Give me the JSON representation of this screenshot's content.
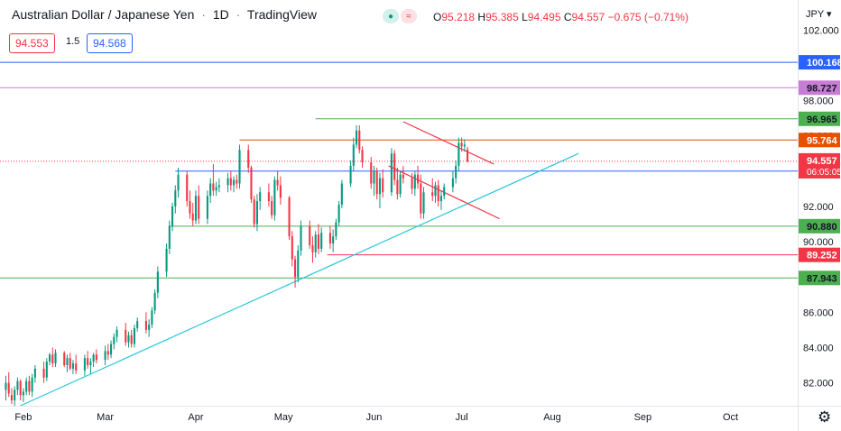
{
  "header": {
    "symbol_title": "Australian Dollar / Japanese Yen",
    "interval": "1D",
    "brand": "TradingView",
    "open_label": "O",
    "open": "95.218",
    "high_label": "H",
    "high": "95.385",
    "low_label": "L",
    "low": "94.495",
    "close_label": "C",
    "close": "94.557",
    "change": "−0.675 (−0.71%)",
    "sell_price": "94.553",
    "spread": "1.5",
    "buy_price": "94.568",
    "currency": "JPY"
  },
  "colors": {
    "up": "#089981",
    "down": "#f23645",
    "trendline": "#26c6da",
    "blue_line": "#2962ff",
    "pink_line": "#c77dd4",
    "green_line": "#4caf50",
    "orange_line": "#e65100",
    "red_line": "#f23645",
    "wedge": "#f23645"
  },
  "icons": [
    "waves-icon",
    "settings-gear-icon"
  ],
  "chart_data": {
    "type": "candlestick",
    "title": "Australian Dollar / Japanese Yen · 1D",
    "ylim": [
      80.7,
      103.7
    ],
    "xlim_days": [
      -8,
      265
    ],
    "y_axis_ticks": [
      "82.000",
      "84.000",
      "86.000",
      "88.000",
      "90.000",
      "92.000",
      "94.000",
      "96.000",
      "98.000",
      "100.000",
      "102.000"
    ],
    "y_tick_values": [
      82,
      84,
      86,
      88,
      90,
      92,
      94,
      96,
      98,
      100,
      102
    ],
    "x_axis_labels": [
      "Feb",
      "Mar",
      "Apr",
      "May",
      "Jun",
      "Jul",
      "Aug",
      "Sep",
      "Oct"
    ],
    "x_axis_days": [
      0,
      28,
      59,
      89,
      120,
      150,
      181,
      212,
      242
    ],
    "levels": [
      {
        "value": 100.168,
        "label": "100.168",
        "color": "#2962ff",
        "text_color": "#ffffff",
        "start_day": -8
      },
      {
        "value": 98.727,
        "label": "98.727",
        "color": "#c77dd4",
        "text_color": "#131722",
        "start_day": -8
      },
      {
        "value": 96.965,
        "label": "96.965",
        "color": "#4caf50",
        "text_color": "#131722",
        "start_day": 100
      },
      {
        "value": 95.764,
        "label": "95.764",
        "color": "#e65100",
        "text_color": "#ffffff",
        "start_day": 74
      },
      {
        "value": 94.002,
        "label": "94.002",
        "color": "#2962ff",
        "text_color": "#ffffff",
        "start_day": 52
      },
      {
        "value": 90.88,
        "label": "90.880",
        "color": "#4caf50",
        "text_color": "#131722",
        "start_day": 50
      },
      {
        "value": 89.252,
        "label": "89.252",
        "color": "#f23645",
        "text_color": "#ffffff",
        "start_day": 104
      },
      {
        "value": 87.943,
        "label": "87.943",
        "color": "#4caf50",
        "text_color": "#131722",
        "start_day": -8
      }
    ],
    "last_price": {
      "value": 94.557,
      "label": "94.557",
      "countdown": "06:05:05"
    },
    "trendline": {
      "from": [
        -1,
        80.7
      ],
      "to": [
        190,
        95.0
      ]
    },
    "wedge_upper": {
      "from": [
        130,
        96.8
      ],
      "to": [
        161,
        94.4
      ]
    },
    "wedge_lower": {
      "from": [
        125,
        94.3
      ],
      "to": [
        163,
        91.3
      ]
    },
    "candles": [
      [
        -6,
        81.6,
        82.4,
        81.0,
        82.0
      ],
      [
        -5,
        82.0,
        82.6,
        81.2,
        81.4
      ],
      [
        -4,
        81.3,
        81.7,
        80.8,
        81.0
      ],
      [
        -3,
        81.0,
        81.8,
        80.7,
        81.6
      ],
      [
        -2,
        81.6,
        82.3,
        81.3,
        82.1
      ],
      [
        -1,
        82.1,
        82.2,
        81.0,
        81.3
      ],
      [
        0,
        81.3,
        81.7,
        80.9,
        81.5
      ],
      [
        1,
        81.5,
        82.3,
        81.3,
        82.1
      ],
      [
        2,
        82.1,
        82.4,
        81.3,
        81.5
      ],
      [
        3,
        81.5,
        82.5,
        81.2,
        82.3
      ],
      [
        4,
        82.3,
        83.0,
        82.0,
        82.8
      ],
      [
        7,
        82.8,
        83.2,
        82.0,
        82.3
      ],
      [
        8,
        82.3,
        83.4,
        82.1,
        83.2
      ],
      [
        9,
        83.2,
        83.7,
        83.0,
        83.6
      ],
      [
        10,
        83.6,
        84.0,
        82.9,
        83.1
      ],
      [
        11,
        83.1,
        83.9,
        82.9,
        83.7
      ],
      [
        14,
        83.7,
        83.8,
        82.9,
        83.0
      ],
      [
        15,
        83.0,
        83.6,
        82.6,
        83.4
      ],
      [
        16,
        83.4,
        83.7,
        82.7,
        82.8
      ],
      [
        17,
        82.8,
        83.3,
        82.5,
        83.1
      ],
      [
        18,
        83.1,
        83.6,
        82.5,
        82.7
      ],
      [
        21,
        82.7,
        83.6,
        82.4,
        83.4
      ],
      [
        22,
        83.4,
        83.8,
        82.8,
        83.0
      ],
      [
        23,
        83.0,
        83.4,
        82.5,
        83.2
      ],
      [
        24,
        83.2,
        83.7,
        82.9,
        83.6
      ],
      [
        25,
        83.6,
        83.9,
        83.1,
        83.3
      ],
      [
        28,
        83.3,
        84.1,
        83.0,
        83.8
      ],
      [
        29,
        83.8,
        84.2,
        83.3,
        83.6
      ],
      [
        30,
        83.6,
        84.4,
        83.4,
        84.2
      ],
      [
        31,
        84.2,
        84.8,
        83.9,
        84.6
      ],
      [
        32,
        84.6,
        85.2,
        84.3,
        85.0
      ],
      [
        35,
        85.0,
        85.4,
        84.1,
        84.3
      ],
      [
        36,
        84.3,
        84.9,
        84.0,
        84.7
      ],
      [
        37,
        84.7,
        85.0,
        84.0,
        84.2
      ],
      [
        38,
        84.2,
        85.3,
        84.0,
        85.1
      ],
      [
        39,
        85.1,
        85.7,
        84.9,
        85.5
      ],
      [
        42,
        85.5,
        86.0,
        84.8,
        85.0
      ],
      [
        43,
        85.0,
        85.6,
        84.6,
        85.3
      ],
      [
        44,
        85.3,
        86.3,
        85.1,
        86.1
      ],
      [
        45,
        86.1,
        87.3,
        85.9,
        87.1
      ],
      [
        46,
        87.1,
        88.6,
        86.8,
        88.3
      ],
      [
        49,
        88.3,
        89.9,
        88.0,
        89.6
      ],
      [
        50,
        89.6,
        91.2,
        89.3,
        90.9
      ],
      [
        51,
        90.9,
        92.2,
        90.6,
        92.0
      ],
      [
        52,
        92.0,
        93.2,
        91.6,
        92.9
      ],
      [
        53,
        92.9,
        94.2,
        92.5,
        93.8
      ],
      [
        56,
        93.8,
        94.0,
        92.0,
        92.3
      ],
      [
        57,
        92.3,
        92.9,
        91.3,
        91.6
      ],
      [
        58,
        91.6,
        92.2,
        90.9,
        91.2
      ],
      [
        59,
        91.2,
        92.9,
        91.0,
        92.6
      ],
      [
        60,
        92.6,
        93.2,
        91.0,
        91.3
      ],
      [
        63,
        91.3,
        92.9,
        91.0,
        92.6
      ],
      [
        64,
        92.6,
        93.6,
        92.2,
        93.3
      ],
      [
        65,
        93.3,
        94.4,
        92.6,
        92.9
      ],
      [
        66,
        92.9,
        93.4,
        92.6,
        93.1
      ],
      [
        67,
        93.1,
        93.6,
        92.8,
        93.2
      ],
      [
        70,
        93.2,
        93.9,
        92.8,
        93.6
      ],
      [
        71,
        93.6,
        94.0,
        92.9,
        93.2
      ],
      [
        72,
        93.2,
        93.7,
        92.8,
        93.5
      ],
      [
        73,
        93.5,
        93.8,
        93.0,
        93.3
      ],
      [
        74,
        93.3,
        95.5,
        93.0,
        95.2
      ],
      [
        77,
        95.2,
        95.5,
        93.9,
        94.2
      ],
      [
        78,
        94.2,
        94.3,
        92.2,
        92.4
      ],
      [
        79,
        92.4,
        92.6,
        90.8,
        91.0
      ],
      [
        80,
        91.0,
        92.7,
        90.6,
        92.3
      ],
      [
        81,
        92.3,
        93.1,
        91.8,
        92.8
      ],
      [
        84,
        92.8,
        93.3,
        92.0,
        92.3
      ],
      [
        85,
        92.3,
        92.6,
        91.3,
        91.5
      ],
      [
        86,
        91.5,
        93.7,
        91.2,
        93.5
      ],
      [
        87,
        93.5,
        94.0,
        92.9,
        93.2
      ],
      [
        88,
        93.2,
        93.7,
        92.1,
        92.5
      ],
      [
        91,
        92.5,
        92.6,
        90.1,
        90.3
      ],
      [
        92,
        90.3,
        90.6,
        88.6,
        89.0
      ],
      [
        93,
        89.0,
        89.2,
        87.4,
        88.0
      ],
      [
        94,
        88.0,
        89.8,
        87.7,
        89.5
      ],
      [
        95,
        89.5,
        91.2,
        89.2,
        90.9
      ],
      [
        98,
        90.9,
        91.2,
        89.6,
        89.8
      ],
      [
        99,
        89.8,
        90.3,
        88.8,
        89.4
      ],
      [
        100,
        89.4,
        90.6,
        89.1,
        90.4
      ],
      [
        101,
        90.4,
        91.0,
        89.3,
        89.6
      ],
      [
        102,
        89.6,
        90.8,
        89.4,
        90.5
      ],
      [
        105,
        90.5,
        90.9,
        89.6,
        89.9
      ],
      [
        106,
        89.9,
        90.7,
        89.4,
        90.3
      ],
      [
        107,
        90.3,
        91.3,
        90.1,
        91.1
      ],
      [
        108,
        91.1,
        92.3,
        90.9,
        92.1
      ],
      [
        109,
        92.1,
        93.5,
        91.9,
        93.3
      ],
      [
        112,
        93.3,
        94.6,
        93.1,
        94.3
      ],
      [
        113,
        94.3,
        95.9,
        94.0,
        95.5
      ],
      [
        114,
        95.5,
        96.6,
        95.3,
        96.3
      ],
      [
        115,
        96.3,
        96.6,
        95.0,
        95.2
      ],
      [
        116,
        95.2,
        95.4,
        94.2,
        94.5
      ],
      [
        119,
        94.5,
        94.8,
        93.0,
        93.3
      ],
      [
        120,
        93.3,
        94.3,
        92.6,
        94.0
      ],
      [
        121,
        94.0,
        94.2,
        92.4,
        92.7
      ],
      [
        122,
        92.7,
        93.9,
        91.9,
        93.6
      ],
      [
        123,
        93.6,
        94.1,
        92.5,
        92.8
      ],
      [
        126,
        92.8,
        95.3,
        92.6,
        95.0
      ],
      [
        127,
        95.0,
        95.2,
        93.2,
        93.5
      ],
      [
        128,
        93.5,
        94.2,
        92.4,
        92.7
      ],
      [
        129,
        92.7,
        94.0,
        92.5,
        93.8
      ],
      [
        130,
        93.8,
        94.3,
        93.3,
        93.6
      ],
      [
        133,
        93.6,
        93.9,
        92.7,
        93.0
      ],
      [
        134,
        93.0,
        94.0,
        92.6,
        93.8
      ],
      [
        135,
        93.8,
        94.3,
        93.0,
        93.3
      ],
      [
        136,
        93.3,
        93.8,
        91.3,
        91.6
      ],
      [
        137,
        91.6,
        93.1,
        91.3,
        92.8
      ],
      [
        140,
        92.8,
        93.6,
        92.3,
        92.6
      ],
      [
        141,
        92.6,
        93.4,
        92.2,
        93.2
      ],
      [
        142,
        93.2,
        93.5,
        92.0,
        92.3
      ],
      [
        143,
        92.3,
        92.9,
        91.8,
        92.6
      ],
      [
        144,
        92.6,
        93.3,
        92.4,
        93.1
      ],
      [
        147,
        93.1,
        94.0,
        92.8,
        93.6
      ],
      [
        148,
        93.6,
        94.6,
        93.3,
        94.3
      ],
      [
        149,
        94.3,
        95.9,
        94.0,
        95.6
      ],
      [
        150,
        95.6,
        95.9,
        95.1,
        95.4
      ],
      [
        151,
        95.4,
        95.8,
        95.1,
        95.5
      ],
      [
        152,
        95.218,
        95.385,
        94.495,
        94.557
      ]
    ]
  }
}
